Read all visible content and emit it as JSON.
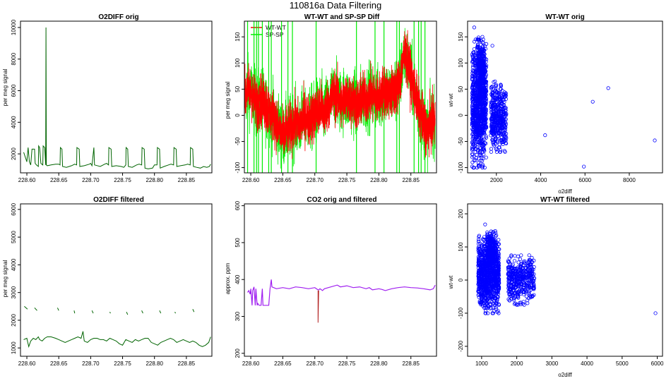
{
  "figure_title": "110816a   Data Filtering",
  "colors": {
    "dark_green": "#006400",
    "red": "#ff0000",
    "green": "#00ee00",
    "blue": "#0000ff",
    "purple": "#a020f0",
    "dark_red": "#b22222"
  },
  "chart_data": [
    {
      "type": "line",
      "title": "O2DIFF orig",
      "xlabel": "",
      "ylabel": "per meg signal",
      "xlim": [
        228.59,
        228.89
      ],
      "ylim": [
        800,
        10400
      ],
      "xticks": [
        "228.60",
        "228.65",
        "228.70",
        "228.75",
        "228.80",
        "228.85"
      ],
      "yticks": [
        "2000",
        "4000",
        "6000",
        "8000",
        "10000"
      ],
      "series": [
        {
          "name": "O2DIFF orig",
          "color": "#006400",
          "x": [
            228.595,
            228.6,
            228.602,
            228.604,
            228.606,
            228.608,
            228.612,
            228.613,
            228.615,
            228.618,
            228.6185,
            228.62,
            228.622,
            228.625,
            228.6255,
            228.628,
            228.6295,
            228.63,
            228.6305,
            228.632,
            228.638,
            228.645,
            228.65,
            228.652,
            228.6525,
            228.655,
            228.656,
            228.662,
            228.67,
            228.675,
            228.678,
            228.6785,
            228.682,
            228.683,
            228.69,
            228.698,
            228.7,
            228.702,
            228.705,
            228.706,
            228.715,
            228.722,
            228.725,
            228.728,
            228.7285,
            228.732,
            228.733,
            228.74,
            228.748,
            228.752,
            228.755,
            228.7555,
            228.758,
            228.759,
            228.765,
            228.772,
            228.776,
            228.78,
            228.7805,
            228.784,
            228.785,
            228.79,
            228.797,
            228.8,
            228.804,
            228.8045,
            228.808,
            228.809,
            228.815,
            228.822,
            228.826,
            228.83,
            228.8305,
            228.834,
            228.835,
            228.841,
            228.848,
            228.852,
            228.856,
            228.8565,
            228.86,
            228.861,
            228.866,
            228.872,
            228.877,
            228.882,
            228.886,
            228.888
          ],
          "y": [
            2100,
            1500,
            2400,
            1500,
            1300,
            2300,
            2300,
            1400,
            1300,
            1200,
            2500,
            2400,
            1400,
            1300,
            2500,
            2400,
            1300,
            10000,
            1300,
            1250,
            1300,
            1350,
            1350,
            1300,
            2400,
            2300,
            1200,
            1150,
            1250,
            1350,
            1300,
            2400,
            2300,
            1200,
            1250,
            1350,
            1400,
            1250,
            2400,
            1300,
            1200,
            1350,
            1400,
            1300,
            2400,
            2300,
            1200,
            1250,
            1200,
            1150,
            1300,
            2400,
            2300,
            1200,
            1150,
            1300,
            1350,
            1300,
            2400,
            2300,
            1100,
            1050,
            1100,
            1300,
            1300,
            2400,
            2300,
            1100,
            1200,
            1300,
            1350,
            1300,
            2400,
            2300,
            1200,
            1250,
            1300,
            1350,
            1300,
            2400,
            2300,
            1200,
            1150,
            1100,
            1200,
            1150,
            1200,
            1350
          ]
        }
      ]
    },
    {
      "type": "line",
      "title": "WT-WT and SP-SP Diff",
      "xlabel": "",
      "ylabel": "per meg signal",
      "xlim": [
        228.59,
        228.89
      ],
      "ylim": [
        -110,
        180
      ],
      "xticks": [
        "228.60",
        "228.65",
        "228.70",
        "228.75",
        "228.80",
        "228.85"
      ],
      "yticks": [
        "-100",
        "-50",
        "0",
        "50",
        "100",
        "150"
      ],
      "legend": [
        {
          "label": "WT-WT",
          "color": "#ff0000"
        },
        {
          "label": "SP-SP",
          "color": "#00ee00"
        }
      ],
      "series": [
        {
          "name": "WT-WT",
          "color": "#ff0000",
          "x": [
            228.59,
            228.595,
            228.6,
            228.605,
            228.61,
            228.615,
            228.62,
            228.625,
            228.63,
            228.635,
            228.64,
            228.645,
            228.65,
            228.655,
            228.66,
            228.665,
            228.67,
            228.675,
            228.68,
            228.685,
            228.69,
            228.695,
            228.7,
            228.705,
            228.71,
            228.715,
            228.72,
            228.725,
            228.73,
            228.735,
            228.74,
            228.745,
            228.75,
            228.755,
            228.76,
            228.765,
            228.77,
            228.775,
            228.78,
            228.785,
            228.79,
            228.795,
            228.8,
            228.805,
            228.81,
            228.815,
            228.82,
            228.825,
            228.83,
            228.835,
            228.84,
            228.845,
            228.85,
            228.855,
            228.86,
            228.865,
            228.87,
            228.875,
            228.88,
            228.885,
            228.888
          ],
          "y": [
            35,
            50,
            45,
            30,
            20,
            30,
            25,
            10,
            5,
            0,
            -15,
            -30,
            -40,
            -30,
            -25,
            -20,
            -15,
            -20,
            -10,
            0,
            -10,
            -5,
            0,
            10,
            15,
            5,
            20,
            30,
            40,
            35,
            25,
            30,
            30,
            30,
            25,
            20,
            25,
            35,
            30,
            40,
            35,
            35,
            30,
            45,
            45,
            40,
            40,
            50,
            55,
            80,
            120,
            100,
            75,
            50,
            25,
            0,
            -15,
            -30,
            -20,
            -15,
            -5
          ],
          "spread": 26
        },
        {
          "name": "SP-SP",
          "color": "#00ee00",
          "spikes_x": [
            228.595,
            228.605,
            228.609,
            228.612,
            228.618,
            228.628,
            228.632,
            228.648,
            228.658,
            228.665,
            228.702,
            228.765,
            228.794,
            228.808,
            228.828,
            228.832,
            228.855,
            228.862,
            228.866,
            228.872
          ],
          "spike_y": 180
        }
      ]
    },
    {
      "type": "scatter",
      "title": "WT-WT orig",
      "xlabel": "o2diff",
      "ylabel": "wt-wt",
      "xlim": [
        700,
        9500
      ],
      "ylim": [
        -110,
        180
      ],
      "xticks": [
        "2000",
        "4000",
        "6000",
        "8000"
      ],
      "yticks": [
        "-100",
        "-50",
        "0",
        "50",
        "100",
        "150"
      ],
      "clusters": [
        {
          "x": [
            900,
            1550
          ],
          "y": [
            -100,
            145
          ],
          "count": 950,
          "color": "#0000ff"
        },
        {
          "x": [
            1150,
            1450
          ],
          "y": [
            40,
            150
          ],
          "count": 220,
          "color": "#0000ff"
        },
        {
          "x": [
            1750,
            2450
          ],
          "y": [
            -70,
            65
          ],
          "count": 420,
          "color": "#0000ff"
        }
      ],
      "points": [
        {
          "x": 1000,
          "y": 168
        },
        {
          "x": 1820,
          "y": 133
        },
        {
          "x": 4200,
          "y": -38
        },
        {
          "x": 5950,
          "y": -98
        },
        {
          "x": 6350,
          "y": 26
        },
        {
          "x": 7050,
          "y": 52
        },
        {
          "x": 9150,
          "y": -48
        }
      ]
    },
    {
      "type": "line",
      "title": "O2DIFF filtered",
      "xlabel": "",
      "ylabel": "per meg signal",
      "xlim": [
        228.59,
        228.89
      ],
      "ylim": [
        700,
        6200
      ],
      "xticks": [
        "228.60",
        "228.65",
        "228.70",
        "228.75",
        "228.80",
        "228.85"
      ],
      "yticks": [
        "1000",
        "2000",
        "3000",
        "4000",
        "5000",
        "6000"
      ],
      "series": [
        {
          "name": "O2DIFF filtered",
          "color": "#006400",
          "x": [
            228.595,
            228.6,
            228.603,
            228.606,
            228.61,
            228.614,
            228.618,
            228.62,
            228.624,
            228.628,
            228.632,
            228.638,
            228.645,
            228.65,
            228.655,
            228.66,
            228.665,
            228.67,
            228.675,
            228.68,
            228.685,
            228.688,
            228.69,
            228.695,
            228.7,
            228.705,
            228.71,
            228.715,
            228.72,
            228.725,
            228.73,
            228.735,
            228.74,
            228.745,
            228.75,
            228.755,
            228.76,
            228.765,
            228.77,
            228.775,
            228.78,
            228.785,
            228.79,
            228.795,
            228.8,
            228.805,
            228.81,
            228.815,
            228.82,
            228.825,
            228.83,
            228.835,
            228.84,
            228.845,
            228.85,
            228.855,
            228.86,
            228.865,
            228.87,
            228.875,
            228.88,
            228.885,
            228.888
          ],
          "y": [
            1300,
            1350,
            1050,
            1250,
            1350,
            1300,
            1400,
            1300,
            1250,
            1350,
            1400,
            1400,
            1350,
            1300,
            1250,
            1200,
            1250,
            1300,
            1350,
            1400,
            1350,
            1600,
            1250,
            1200,
            1300,
            1350,
            1350,
            1300,
            1300,
            1250,
            1350,
            1300,
            1250,
            1150,
            1100,
            1300,
            1250,
            1200,
            1300,
            1250,
            1300,
            1350,
            1350,
            1200,
            1150,
            1100,
            1200,
            1250,
            1300,
            1350,
            1300,
            1200,
            1250,
            1300,
            1250,
            1200,
            1250,
            1200,
            1100,
            1050,
            1100,
            1200,
            1400
          ]
        }
      ],
      "fragments": [
        {
          "x": [
            228.596,
            228.601
          ],
          "y": [
            2500,
            2400
          ]
        },
        {
          "x": [
            228.612,
            228.616
          ],
          "y": [
            2450,
            2350
          ]
        },
        {
          "x": [
            228.648,
            228.65
          ],
          "y": [
            2450,
            2350
          ]
        },
        {
          "x": [
            228.674,
            228.675
          ],
          "y": [
            2350,
            2250
          ]
        },
        {
          "x": [
            228.702,
            228.704
          ],
          "y": [
            2350,
            2250
          ]
        },
        {
          "x": [
            228.73,
            228.731
          ],
          "y": [
            2300,
            2250
          ]
        },
        {
          "x": [
            228.756,
            228.758
          ],
          "y": [
            2300,
            2200
          ]
        },
        {
          "x": [
            228.78,
            228.782
          ],
          "y": [
            2350,
            2250
          ]
        },
        {
          "x": [
            228.808,
            228.81
          ],
          "y": [
            2350,
            2250
          ]
        },
        {
          "x": [
            228.832,
            228.833
          ],
          "y": [
            2300,
            2250
          ]
        },
        {
          "x": [
            228.86,
            228.862
          ],
          "y": [
            2400,
            2300
          ]
        }
      ]
    },
    {
      "type": "line",
      "title": "CO2 orig and filtered",
      "xlabel": "",
      "ylabel": "approx. ppm",
      "xlim": [
        228.59,
        228.89
      ],
      "ylim": [
        192,
        605
      ],
      "xticks": [
        "228.60",
        "228.65",
        "228.70",
        "228.75",
        "228.80",
        "228.85"
      ],
      "yticks": [
        "200",
        "300",
        "400",
        "500",
        "600"
      ],
      "series": [
        {
          "name": "CO2 orig",
          "color": "#b22222",
          "x": [
            228.705,
            228.705,
            228.706
          ],
          "y": [
            370,
            283,
            370
          ]
        },
        {
          "name": "CO2 filtered",
          "color": "#a020f0",
          "x": [
            228.595,
            228.597,
            228.599,
            228.6,
            228.602,
            228.603,
            228.605,
            228.607,
            228.608,
            228.61,
            228.611,
            228.613,
            228.616,
            228.618,
            228.619,
            228.62,
            228.625,
            228.628,
            228.63,
            228.632,
            228.633,
            228.64,
            228.65,
            228.66,
            228.67,
            228.68,
            228.69,
            228.7,
            228.705,
            228.706,
            228.708,
            228.712,
            228.715,
            228.725,
            228.735,
            228.74,
            228.75,
            228.76,
            228.77,
            228.78,
            228.785,
            228.79,
            228.8,
            228.805,
            228.81,
            228.82,
            228.83,
            228.84,
            228.85,
            228.86,
            228.87,
            228.88,
            228.885,
            228.888
          ],
          "y": [
            365,
            370,
            360,
            375,
            330,
            370,
            380,
            330,
            375,
            330,
            335,
            330,
            330,
            375,
            330,
            330,
            330,
            330,
            375,
            400,
            380,
            375,
            378,
            375,
            380,
            378,
            375,
            378,
            372,
            372,
            375,
            370,
            375,
            380,
            385,
            380,
            383,
            378,
            380,
            375,
            378,
            372,
            375,
            373,
            370,
            375,
            378,
            380,
            378,
            377,
            375,
            372,
            375,
            385
          ]
        }
      ]
    },
    {
      "type": "scatter",
      "title": "WT-WT filtered",
      "xlabel": "o2diff",
      "ylabel": "wt-wt",
      "xlim": [
        600,
        6150
      ],
      "ylim": [
        -230,
        230
      ],
      "xticks": [
        "1000",
        "2000",
        "3000",
        "4000",
        "5000",
        "6000"
      ],
      "yticks": [
        "-200",
        "-100",
        "0",
        "100",
        "200"
      ],
      "clusters": [
        {
          "x": [
            900,
            1500
          ],
          "y": [
            -100,
            140
          ],
          "count": 950,
          "color": "#0000ff"
        },
        {
          "x": [
            1150,
            1400
          ],
          "y": [
            40,
            150
          ],
          "count": 220,
          "color": "#0000ff"
        },
        {
          "x": [
            1750,
            2500
          ],
          "y": [
            -75,
            75
          ],
          "count": 420,
          "color": "#0000ff"
        }
      ],
      "points": [
        {
          "x": 1100,
          "y": 168
        },
        {
          "x": 5950,
          "y": -100
        }
      ]
    }
  ]
}
